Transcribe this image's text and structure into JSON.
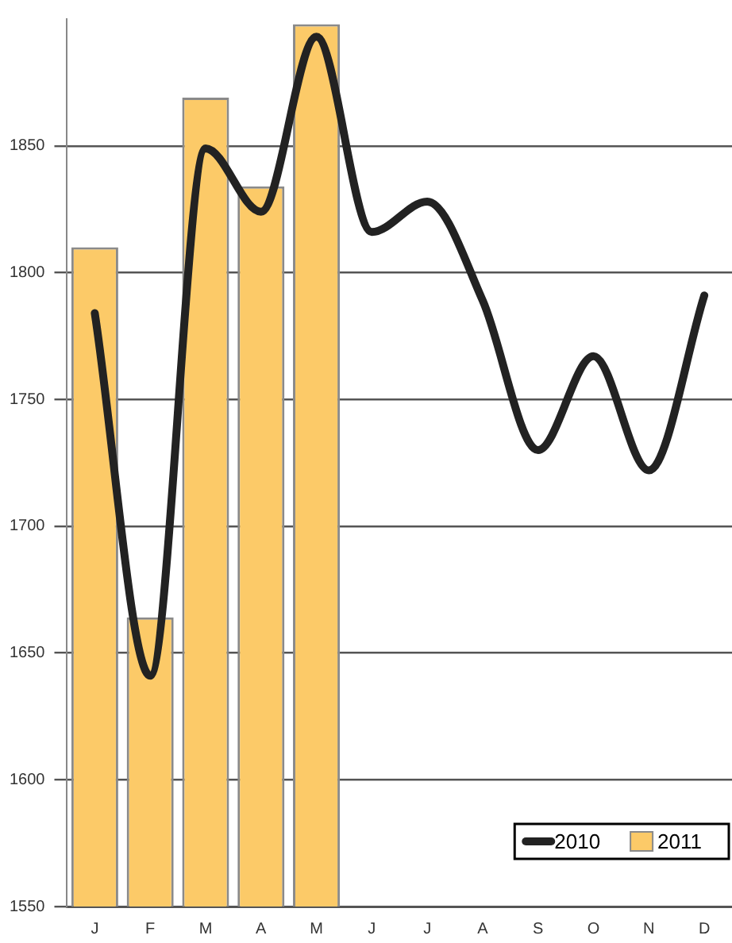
{
  "chart_data": {
    "type": "bar",
    "categories": [
      "J",
      "F",
      "M",
      "A",
      "M",
      "J",
      "J",
      "A",
      "S",
      "O",
      "N",
      "D"
    ],
    "series": [
      {
        "name": "2010",
        "type": "line",
        "color": "#222222",
        "values": [
          1784,
          1641,
          1849,
          1824,
          1893,
          1816,
          1828,
          1789,
          1730,
          1767,
          1722,
          1791
        ]
      },
      {
        "name": "2011",
        "color": "#fcca68",
        "values": [
          1810,
          1664,
          1869,
          1834,
          1898,
          null,
          null,
          null,
          null,
          null,
          null,
          null
        ]
      }
    ],
    "ylim": [
      1550,
      1900
    ],
    "yticks": [
      1550,
      1600,
      1650,
      1700,
      1750,
      1800,
      1850
    ],
    "grid": "y",
    "legend": "bottom right",
    "marker": "none"
  }
}
